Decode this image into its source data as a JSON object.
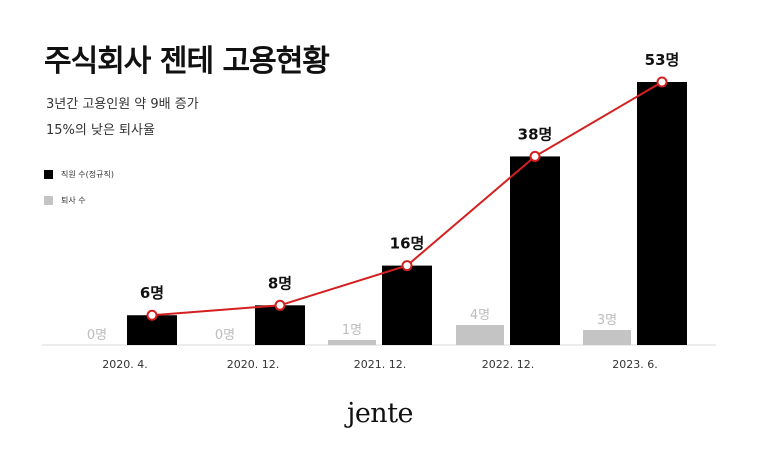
{
  "title": "주식회사 젠테 고용현황",
  "subtitle": [
    "3년간 고용인원 약 9배 증가",
    "15%의 낮은 퇴사율"
  ],
  "legend": [
    {
      "label": "직원 수(정규직)",
      "color": "#000000"
    },
    {
      "label": "퇴사 수",
      "color": "#c4c4c4"
    }
  ],
  "logo": "jente",
  "colors": {
    "employees": "#000000",
    "resignations": "#c4c4c4",
    "trend_line": "#d42020",
    "resign_label": "#bdbdbd"
  },
  "chart_data": {
    "type": "bar",
    "categories": [
      "2020. 4.",
      "2020. 12.",
      "2021. 12.",
      "2022. 12.",
      "2023. 6."
    ],
    "series": [
      {
        "name": "직원 수(정규직)",
        "values": [
          6,
          8,
          16,
          38,
          53
        ],
        "labels": [
          "6명",
          "8명",
          "16명",
          "38명",
          "53명"
        ],
        "overlay_line": true
      },
      {
        "name": "퇴사 수",
        "values": [
          0,
          0,
          1,
          4,
          3
        ],
        "labels": [
          "0명",
          "0명",
          "1명",
          "4명",
          "3명"
        ]
      }
    ],
    "ylim": [
      0,
      55
    ],
    "grid": false,
    "legend_position": "left"
  }
}
